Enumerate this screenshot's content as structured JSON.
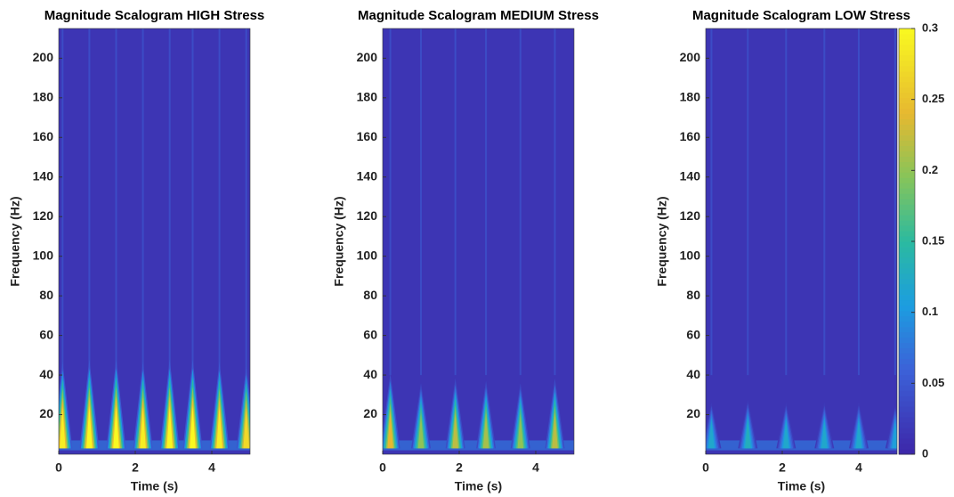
{
  "chart_data": [
    {
      "type": "heatmap",
      "title": "Magnitude Scalogram HIGH Stress",
      "xlabel": "Time (s)",
      "ylabel": "Frequency (Hz)",
      "xlim": [
        0,
        5
      ],
      "xticks": [
        0,
        2,
        4
      ],
      "ylim": [
        0,
        215
      ],
      "yticks": [
        20,
        40,
        60,
        80,
        100,
        120,
        140,
        160,
        180,
        200
      ],
      "x": [
        0.1,
        0.8,
        1.5,
        2.2,
        2.9,
        3.5,
        4.2,
        4.9
      ],
      "values": [
        0.29,
        0.3,
        0.3,
        0.29,
        0.3,
        0.3,
        0.29,
        0.27
      ],
      "colormap": "parula"
    },
    {
      "type": "heatmap",
      "title": "Magnitude Scalogram MEDIUM Stress",
      "xlabel": "Time (s)",
      "ylabel": "Frequency (Hz)",
      "xlim": [
        0,
        5
      ],
      "xticks": [
        0,
        2,
        4
      ],
      "ylim": [
        0,
        215
      ],
      "yticks": [
        20,
        40,
        60,
        80,
        100,
        120,
        140,
        160,
        180,
        200
      ],
      "x": [
        0.2,
        1.0,
        1.9,
        2.7,
        3.6,
        4.5
      ],
      "values": [
        0.24,
        0.2,
        0.22,
        0.21,
        0.2,
        0.22
      ],
      "colormap": "parula"
    },
    {
      "type": "heatmap",
      "title": "Magnitude Scalogram LOW Stress",
      "xlabel": "Time (s)",
      "ylabel": "Frequency (Hz)",
      "xlim": [
        0,
        5
      ],
      "xticks": [
        0,
        2,
        4
      ],
      "ylim": [
        0,
        215
      ],
      "yticks": [
        20,
        40,
        60,
        80,
        100,
        120,
        140,
        160,
        180,
        200
      ],
      "x": [
        0.15,
        1.1,
        2.1,
        3.1,
        4.0,
        4.95
      ],
      "values": [
        0.12,
        0.13,
        0.12,
        0.12,
        0.12,
        0.11
      ],
      "colormap": "parula",
      "clim": [
        0,
        0.3
      ],
      "cticks": [
        0,
        0.05,
        0.1,
        0.15,
        0.2,
        0.25,
        0.3
      ]
    }
  ]
}
